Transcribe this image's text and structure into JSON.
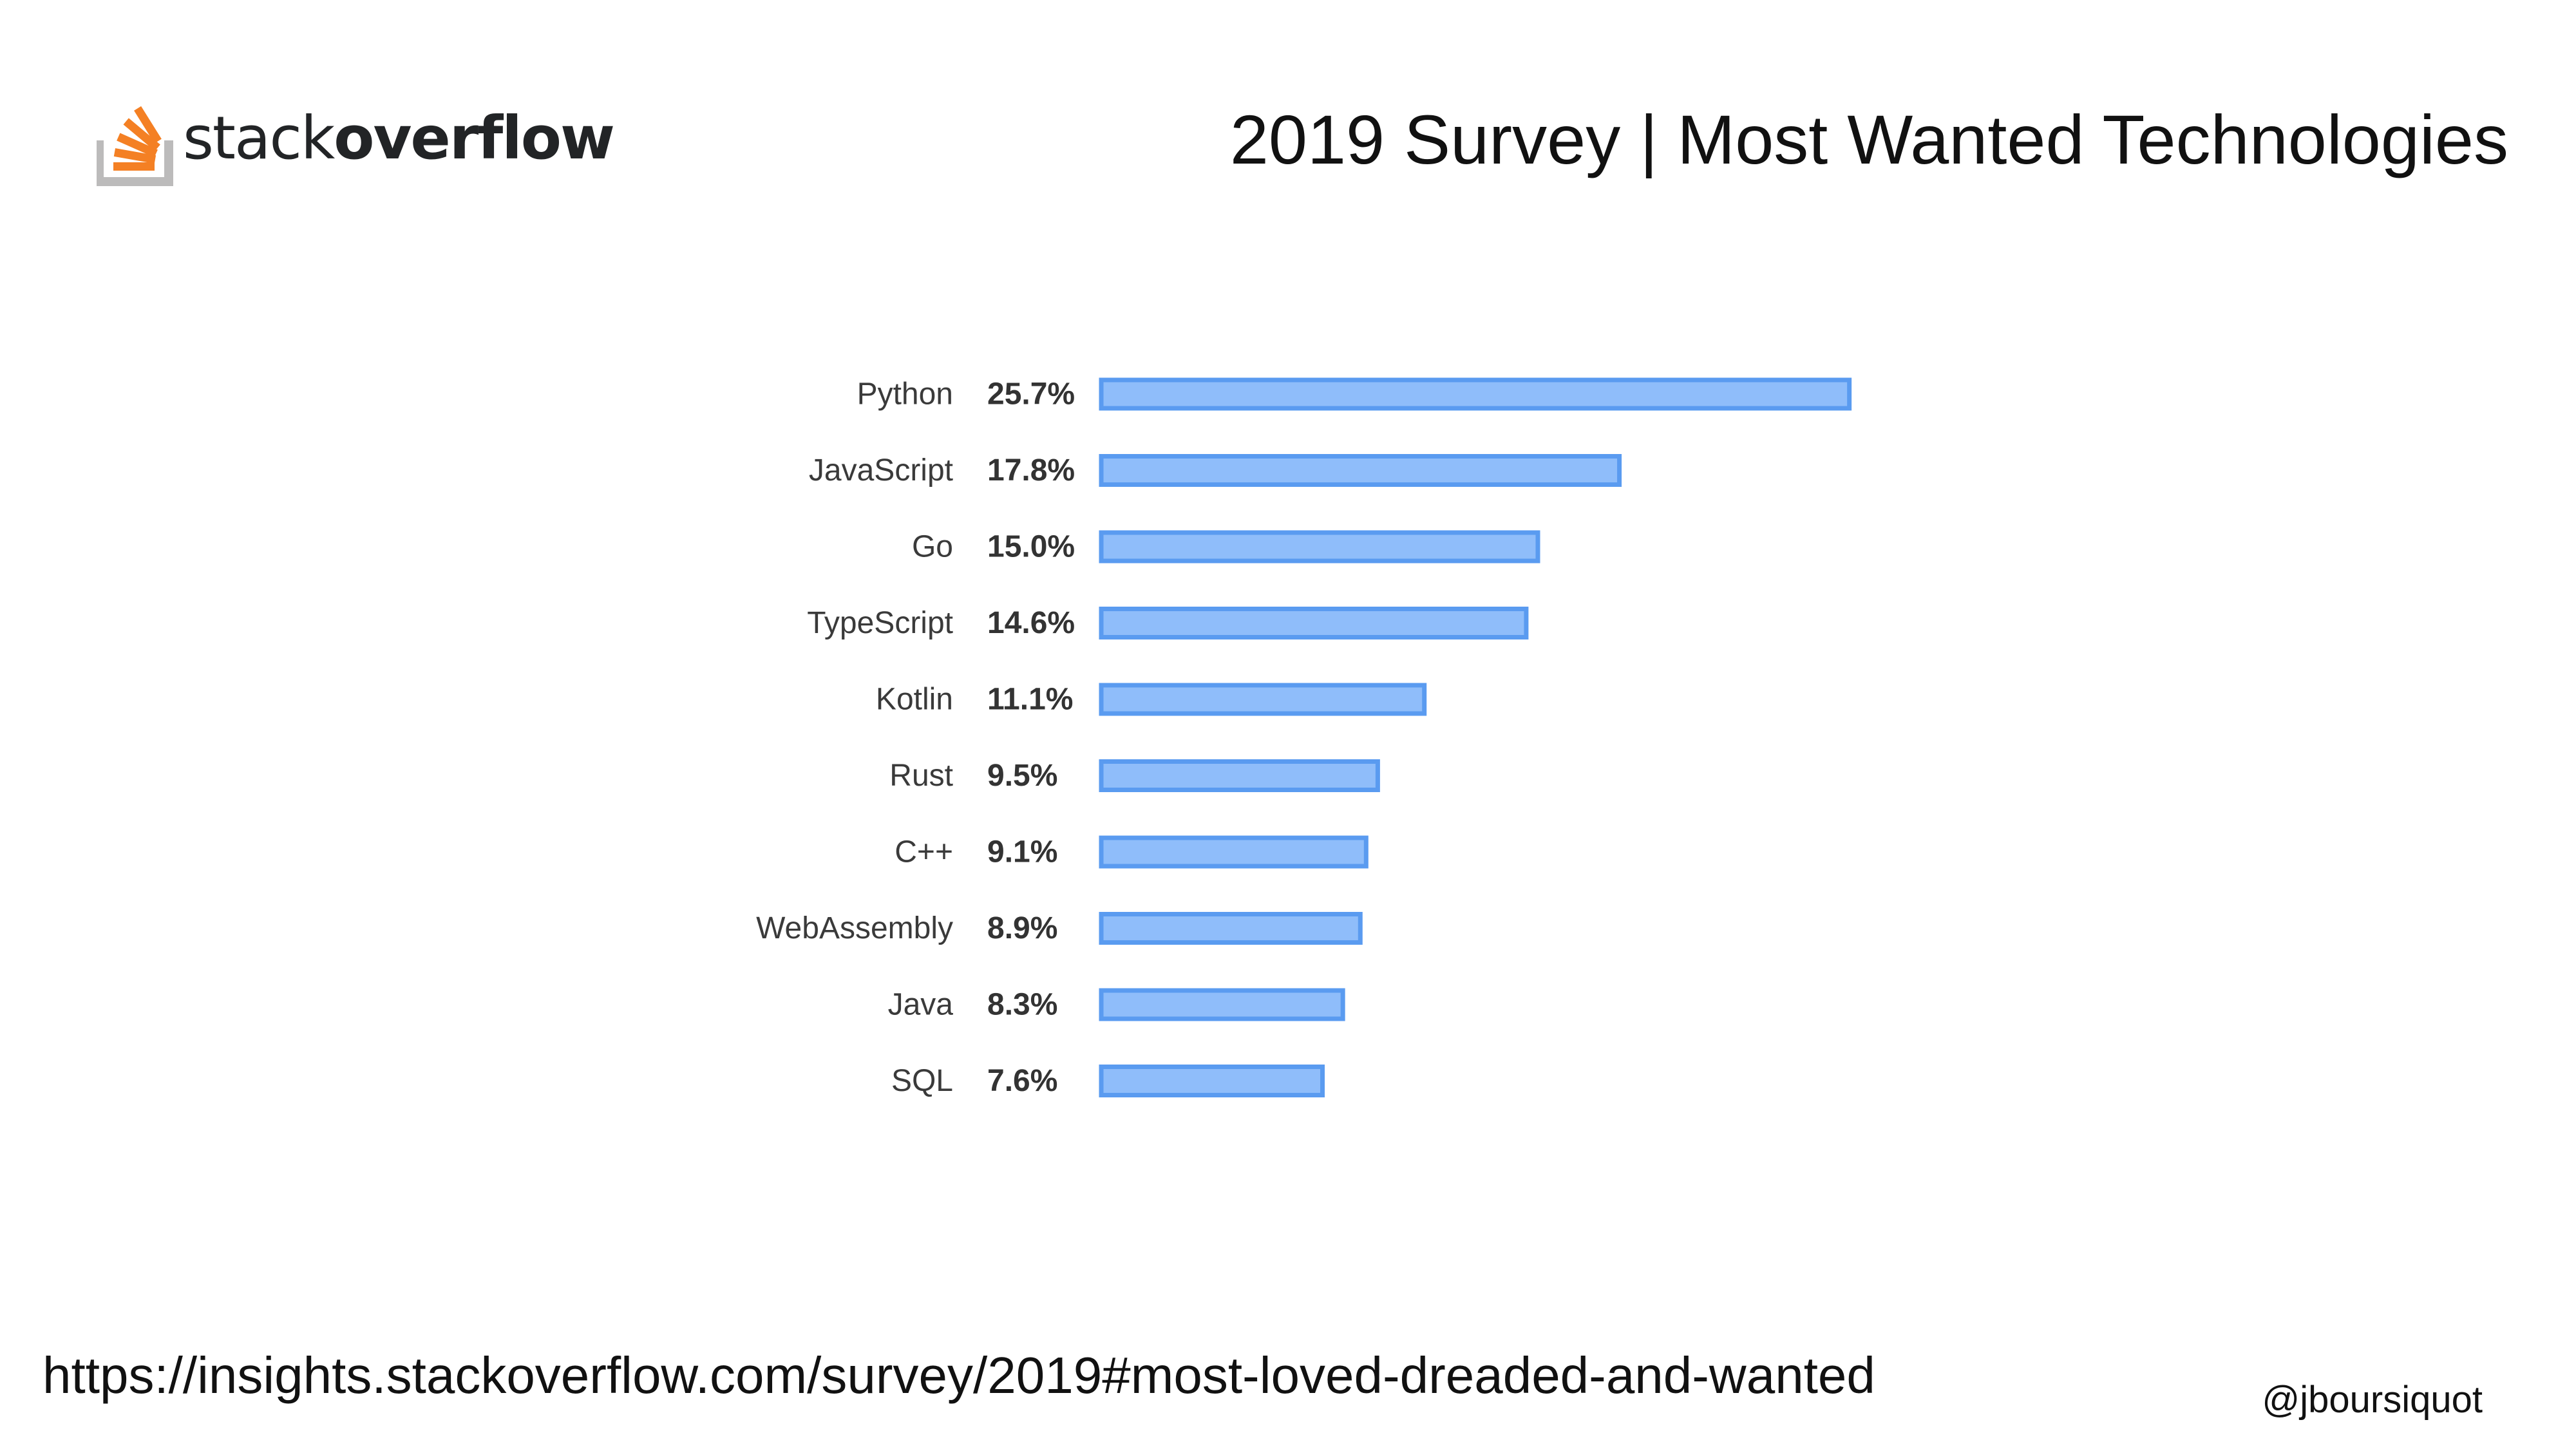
{
  "brand": {
    "logo_light": "stack",
    "logo_bold": "overflow",
    "accent_color": "#F48024",
    "tray_color": "#BCBBBB"
  },
  "slide": {
    "title": "2019 Survey | Most Wanted Technologies",
    "source_url": "https://insights.stackoverflow.com/survey/2019#most-loved-dreaded-and-wanted",
    "handle": "@jboursiquot"
  },
  "chart_data": {
    "type": "bar",
    "orientation": "horizontal",
    "categories": [
      "Python",
      "JavaScript",
      "Go",
      "TypeScript",
      "Kotlin",
      "Rust",
      "C++",
      "WebAssembly",
      "Java",
      "SQL"
    ],
    "values": [
      25.7,
      17.8,
      15.0,
      14.6,
      11.1,
      9.5,
      9.1,
      8.9,
      8.3,
      7.6
    ],
    "value_labels": [
      "25.7%",
      "17.8%",
      "15.0%",
      "14.6%",
      "11.1%",
      "9.5%",
      "9.1%",
      "8.9%",
      "8.3%",
      "7.6%"
    ],
    "unit": "%",
    "bar_fill": "#8FBDFA",
    "bar_stroke": "#5A9BF0",
    "grid": false,
    "legend": "none"
  }
}
